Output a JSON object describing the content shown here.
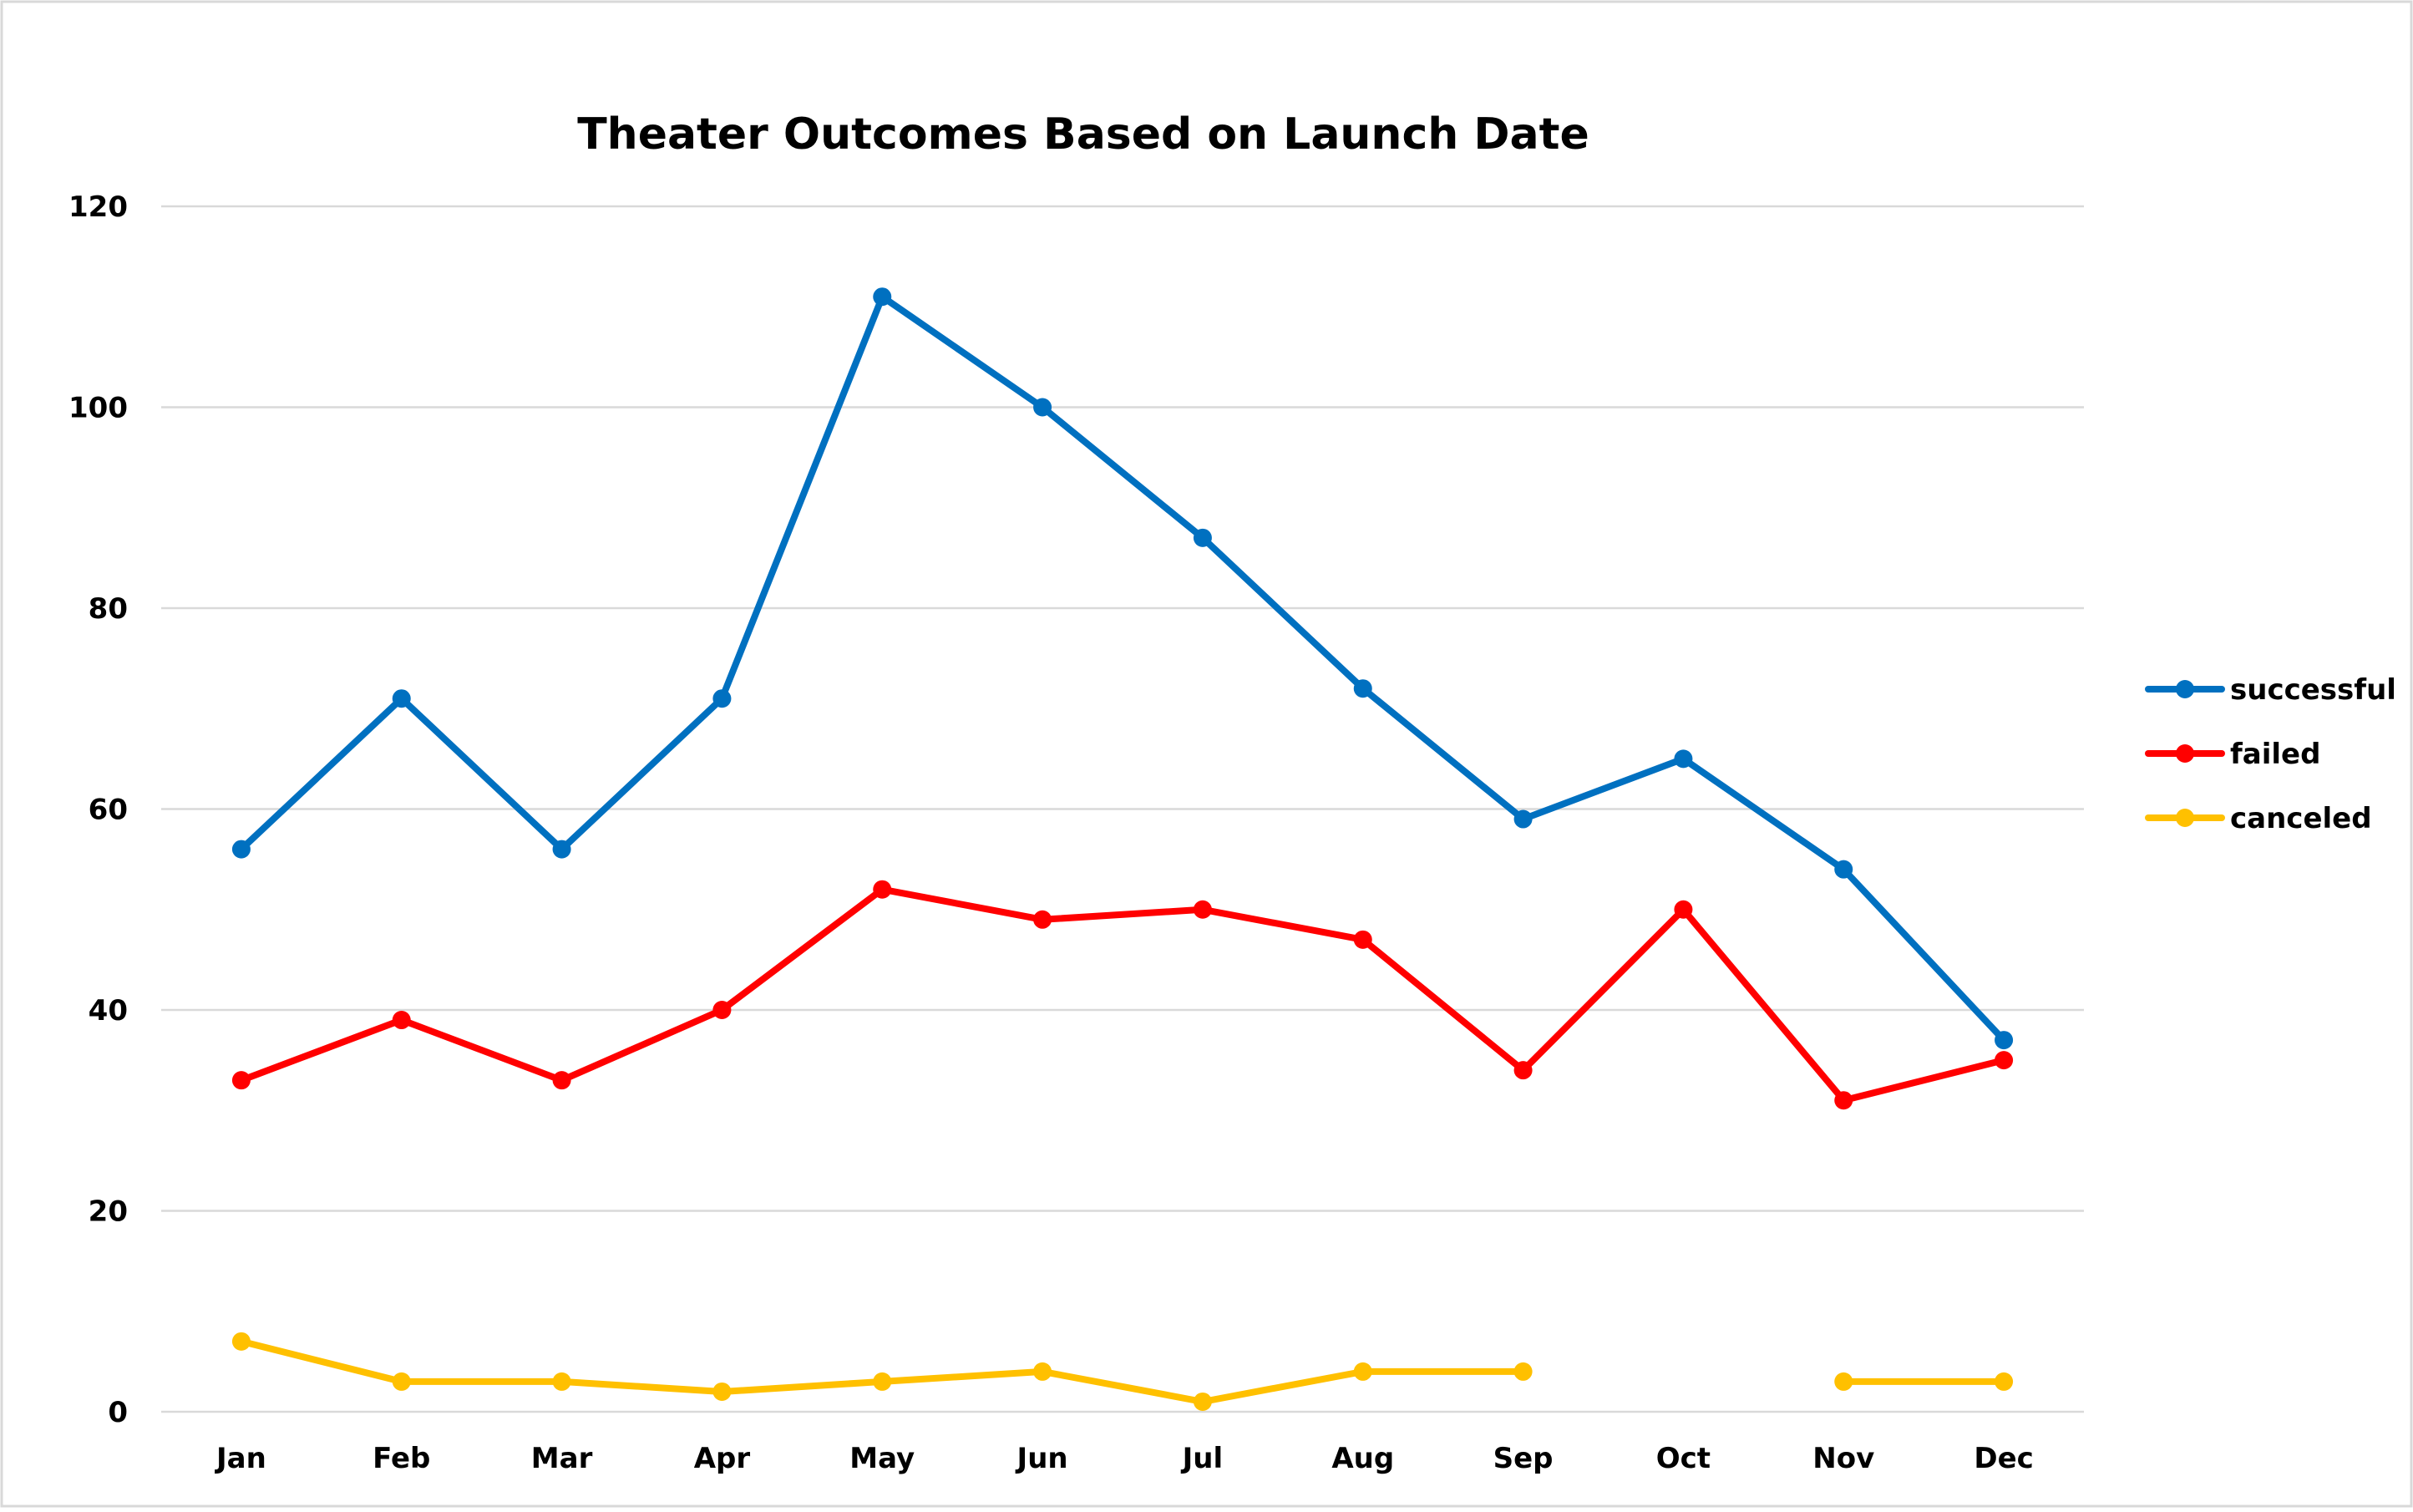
{
  "chart_data": {
    "type": "line",
    "title": "Theater Outcomes Based on Launch Date",
    "xlabel": "",
    "ylabel": "",
    "categories": [
      "Jan",
      "Feb",
      "Mar",
      "Apr",
      "May",
      "Jun",
      "Jul",
      "Aug",
      "Sep",
      "Oct",
      "Nov",
      "Dec"
    ],
    "ylim": [
      0,
      120
    ],
    "yticks": [
      "0",
      "20",
      "40",
      "60",
      "80",
      "100",
      "120"
    ],
    "grid": true,
    "legend_position": "right",
    "series": [
      {
        "name": "successful",
        "color": "#0070c0",
        "values": [
          56,
          71,
          56,
          71,
          111,
          100,
          87,
          72,
          59,
          65,
          54,
          37
        ]
      },
      {
        "name": "failed",
        "color": "#ff0000",
        "values": [
          33,
          39,
          33,
          40,
          52,
          49,
          50,
          47,
          34,
          50,
          31,
          35
        ]
      },
      {
        "name": "canceled",
        "color": "#ffc000",
        "values": [
          7,
          3,
          3,
          2,
          3,
          4,
          1,
          4,
          4,
          null,
          3,
          3
        ]
      }
    ]
  }
}
